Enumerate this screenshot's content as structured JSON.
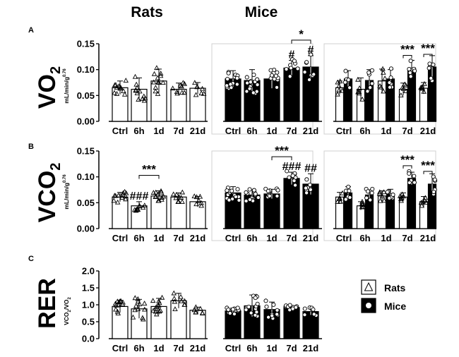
{
  "header": {
    "rats": "Rats",
    "mice": "Mice"
  },
  "panels": [
    {
      "letter": "A",
      "measure": "VO",
      "subscript": "2",
      "unit": "mL/min/g",
      "exponent": "0.76"
    },
    {
      "letter": "B",
      "measure": "VCO",
      "subscript": "2",
      "unit": "mL/min/g",
      "exponent": "0.76"
    },
    {
      "letter": "C",
      "measure": "RER",
      "unit_main": "VCO",
      "unit_sub1": "2",
      "unit_div": "/VO",
      "unit_sub2": "2"
    }
  ],
  "legend": [
    {
      "label": "Rats",
      "marker": "triangle",
      "fill": "#ffffff"
    },
    {
      "label": "Mice",
      "marker": "circle",
      "fill": "#000000"
    }
  ],
  "colors": {
    "rats_bar": "#ffffff",
    "mice_bar": "#000000",
    "axis": "#000000",
    "box": "#cccccc"
  },
  "chart_data": [
    {
      "type": "bar",
      "panel": "A",
      "group": "Rats",
      "categories": [
        "Ctrl",
        "6h",
        "1d",
        "7d",
        "21d"
      ],
      "values": [
        0.065,
        0.062,
        0.078,
        0.062,
        0.064
      ],
      "errors": [
        0.013,
        0.022,
        0.023,
        0.012,
        0.011
      ],
      "yticks": [
        "0.00",
        "0.05",
        "0.10",
        "0.15"
      ],
      "ylim": [
        0,
        0.15
      ],
      "annotations": []
    },
    {
      "type": "bar",
      "panel": "A",
      "group": "Mice",
      "categories": [
        "Ctrl",
        "6h",
        "1d",
        "7d",
        "21d"
      ],
      "values": [
        0.082,
        0.079,
        0.082,
        0.103,
        0.105
      ],
      "errors": [
        0.016,
        0.021,
        0.018,
        0.015,
        0.022
      ],
      "ylim": [
        0,
        0.15
      ],
      "annotations": [
        {
          "text": "#",
          "at": "7d"
        },
        {
          "text": "#",
          "at": "21d"
        },
        {
          "text": "*",
          "between": [
            "7d",
            "21d"
          ]
        }
      ]
    },
    {
      "type": "bar",
      "panel": "A",
      "group": "Rats vs Mice",
      "categories": [
        "Ctrl",
        "6h",
        "1d",
        "7d",
        "21d"
      ],
      "series": [
        {
          "name": "Rats",
          "values": [
            0.065,
            0.062,
            0.078,
            0.062,
            0.064
          ]
        },
        {
          "name": "Mice",
          "values": [
            0.082,
            0.079,
            0.082,
            0.103,
            0.105
          ]
        }
      ],
      "ylim": [
        0,
        0.15
      ],
      "annotations": [
        {
          "text": "***",
          "at": "7d"
        },
        {
          "text": "***",
          "at": "21d"
        }
      ]
    },
    {
      "type": "bar",
      "panel": "B",
      "group": "Rats",
      "categories": [
        "Ctrl",
        "6h",
        "1d",
        "7d",
        "21d"
      ],
      "values": [
        0.061,
        0.044,
        0.063,
        0.061,
        0.052
      ],
      "errors": [
        0.009,
        0.008,
        0.01,
        0.008,
        0.01
      ],
      "yticks": [
        "0.00",
        "0.05",
        "0.10",
        "0.15"
      ],
      "ylim": [
        0,
        0.15
      ],
      "annotations": [
        {
          "text": "###",
          "at": "6h"
        },
        {
          "text": "***",
          "between": [
            "6h",
            "1d"
          ]
        }
      ]
    },
    {
      "type": "bar",
      "panel": "B",
      "group": "Mice",
      "categories": [
        "Ctrl",
        "6h",
        "1d",
        "7d",
        "21d"
      ],
      "values": [
        0.069,
        0.065,
        0.067,
        0.097,
        0.086
      ],
      "errors": [
        0.012,
        0.01,
        0.009,
        0.012,
        0.02
      ],
      "ylim": [
        0,
        0.15
      ],
      "annotations": [
        {
          "text": "###",
          "at": "7d"
        },
        {
          "text": "##",
          "at": "21d"
        },
        {
          "text": "***",
          "between": [
            "1d",
            "7d"
          ]
        }
      ]
    },
    {
      "type": "bar",
      "panel": "B",
      "group": "Rats vs Mice",
      "categories": [
        "Ctrl",
        "6h",
        "1d",
        "7d",
        "21d"
      ],
      "series": [
        {
          "name": "Rats",
          "values": [
            0.061,
            0.044,
            0.063,
            0.061,
            0.052
          ]
        },
        {
          "name": "Mice",
          "values": [
            0.069,
            0.065,
            0.067,
            0.097,
            0.086
          ]
        }
      ],
      "ylim": [
        0,
        0.15
      ],
      "annotations": [
        {
          "text": "***",
          "at": "7d"
        },
        {
          "text": "***",
          "at": "21d"
        }
      ]
    },
    {
      "type": "bar",
      "panel": "C",
      "group": "Rats",
      "categories": [
        "Ctrl",
        "6h",
        "1d",
        "7d",
        "21d"
      ],
      "values": [
        0.95,
        0.88,
        0.95,
        1.12,
        0.84
      ],
      "errors": [
        0.18,
        0.28,
        0.24,
        0.22,
        0.09
      ],
      "yticks": [
        "0.0",
        "0.5",
        "1.0",
        "1.5",
        "2.0"
      ],
      "ylim": [
        0,
        2.0
      ],
      "annotations": []
    },
    {
      "type": "bar",
      "panel": "C",
      "group": "Mice",
      "categories": [
        "Ctrl",
        "6h",
        "1d",
        "7d",
        "21d"
      ],
      "values": [
        0.82,
        0.97,
        0.86,
        0.92,
        0.8
      ],
      "errors": [
        0.08,
        0.32,
        0.22,
        0.06,
        0.1
      ],
      "ylim": [
        0,
        2.0
      ],
      "annotations": []
    }
  ]
}
